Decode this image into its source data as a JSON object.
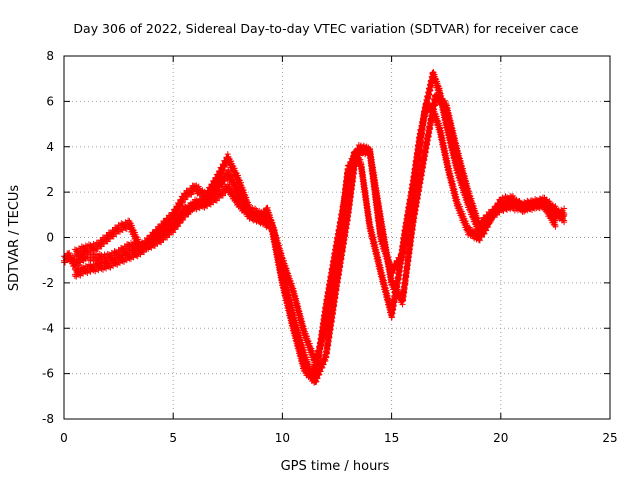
{
  "chart_data": {
    "type": "scatter",
    "title": "Day 306 of 2022, Sidereal Day-to-day VTEC variation (SDTVAR) for receiver cace",
    "xlabel": "GPS time / hours",
    "ylabel": "SDTVAR / TECUs",
    "xlim": [
      0,
      25
    ],
    "ylim": [
      -8,
      8
    ],
    "xticks": [
      "0",
      "5",
      "10",
      "15",
      "20",
      "25"
    ],
    "yticks": [
      "-8",
      "-6",
      "-4",
      "-2",
      "0",
      "2",
      "4",
      "6",
      "8"
    ],
    "grid": true,
    "marker": "+",
    "color": "#ff0000",
    "series": [
      {
        "x": [
          0.0,
          0.2,
          0.5,
          0.8,
          1.0,
          1.5,
          2.0,
          2.5,
          3.0,
          3.5,
          4.0,
          4.5,
          5.0,
          5.5,
          6.0,
          6.5,
          7.0,
          7.5,
          8.0,
          8.5,
          9.0,
          9.3,
          9.6,
          10.0,
          10.5,
          11.0,
          11.3,
          11.6,
          12.0,
          12.5,
          13.0,
          13.3,
          13.6,
          14.0,
          14.5,
          15.0,
          15.3,
          15.6,
          16.0,
          16.3,
          16.6,
          16.9,
          17.2,
          17.6,
          18.0,
          18.5,
          19.0,
          19.3,
          19.6,
          20.0,
          20.5,
          21.0,
          21.5,
          22.0,
          22.5,
          22.9
        ],
        "values": [
          -1.0,
          -0.8,
          -1.2,
          -0.9,
          -0.8,
          -0.9,
          -0.9,
          -0.7,
          -0.4,
          -0.4,
          -0.3,
          0.0,
          0.4,
          1.0,
          1.5,
          1.6,
          2.2,
          2.8,
          2.0,
          1.0,
          0.8,
          1.2,
          0.3,
          -1.5,
          -3.5,
          -5.2,
          -6.0,
          -5.6,
          -3.0,
          -0.2,
          2.5,
          3.7,
          3.2,
          0.5,
          -1.5,
          -3.4,
          -1.8,
          0.2,
          2.5,
          4.5,
          5.8,
          5.6,
          4.8,
          3.0,
          1.5,
          0.3,
          0.0,
          0.4,
          1.0,
          1.3,
          1.5,
          1.4,
          1.5,
          1.6,
          1.2,
          0.8
        ]
      },
      {
        "x": [
          0.5,
          1.0,
          1.5,
          2.0,
          2.5,
          3.0,
          3.5,
          4.0,
          4.5,
          5.0,
          5.5,
          6.0,
          6.5,
          7.0,
          7.5,
          8.0,
          8.5,
          9.0,
          9.5,
          10.0,
          10.5,
          11.0,
          11.5,
          12.0,
          12.5,
          13.0,
          13.3,
          13.6,
          14.0,
          14.5,
          15.0,
          15.5,
          16.0,
          16.5,
          16.9,
          17.2,
          17.5,
          18.0,
          18.5,
          19.0,
          19.5,
          20.0,
          20.5,
          21.0,
          21.5,
          22.0,
          22.5,
          22.9
        ],
        "values": [
          -1.6,
          -1.4,
          -1.3,
          -1.2,
          -1.0,
          -0.8,
          -0.6,
          -0.2,
          0.3,
          0.6,
          1.2,
          1.4,
          1.5,
          1.8,
          2.2,
          1.5,
          1.0,
          0.8,
          0.5,
          -2.0,
          -4.0,
          -5.8,
          -6.3,
          -5.2,
          -2.0,
          1.0,
          3.2,
          3.9,
          3.8,
          0.0,
          -1.5,
          -0.8,
          2.0,
          5.5,
          7.2,
          6.4,
          5.0,
          3.0,
          1.5,
          0.3,
          0.8,
          1.6,
          1.7,
          1.3,
          1.4,
          1.6,
          1.0,
          1.1
        ]
      },
      {
        "x": [
          0.5,
          1.0,
          1.5,
          2.0,
          2.5,
          3.0,
          3.5,
          4.0,
          4.5,
          5.0,
          5.5,
          6.0,
          6.5,
          7.0,
          7.5,
          8.0,
          8.5,
          9.0,
          9.5,
          10.0,
          10.5,
          11.0,
          11.5,
          12.0,
          12.5,
          13.0,
          13.5,
          14.0,
          14.5,
          15.0,
          15.5,
          16.0,
          16.5,
          17.0,
          17.5,
          18.0,
          18.5,
          19.0,
          19.5,
          20.0,
          20.5,
          21.0,
          21.5,
          22.0,
          22.5
        ],
        "values": [
          -0.7,
          -0.5,
          -0.4,
          0.0,
          0.4,
          0.6,
          -0.5,
          0.0,
          0.5,
          1.0,
          1.8,
          2.2,
          1.8,
          2.6,
          3.5,
          2.5,
          1.2,
          1.0,
          0.6,
          -1.0,
          -2.4,
          -4.2,
          -5.5,
          -4.0,
          -1.0,
          3.0,
          3.9,
          3.8,
          0.8,
          -2.0,
          -2.8,
          0.8,
          3.6,
          6.2,
          5.8,
          3.8,
          2.0,
          0.5,
          1.0,
          1.4,
          1.4,
          1.3,
          1.5,
          1.4,
          0.6
        ]
      }
    ]
  }
}
